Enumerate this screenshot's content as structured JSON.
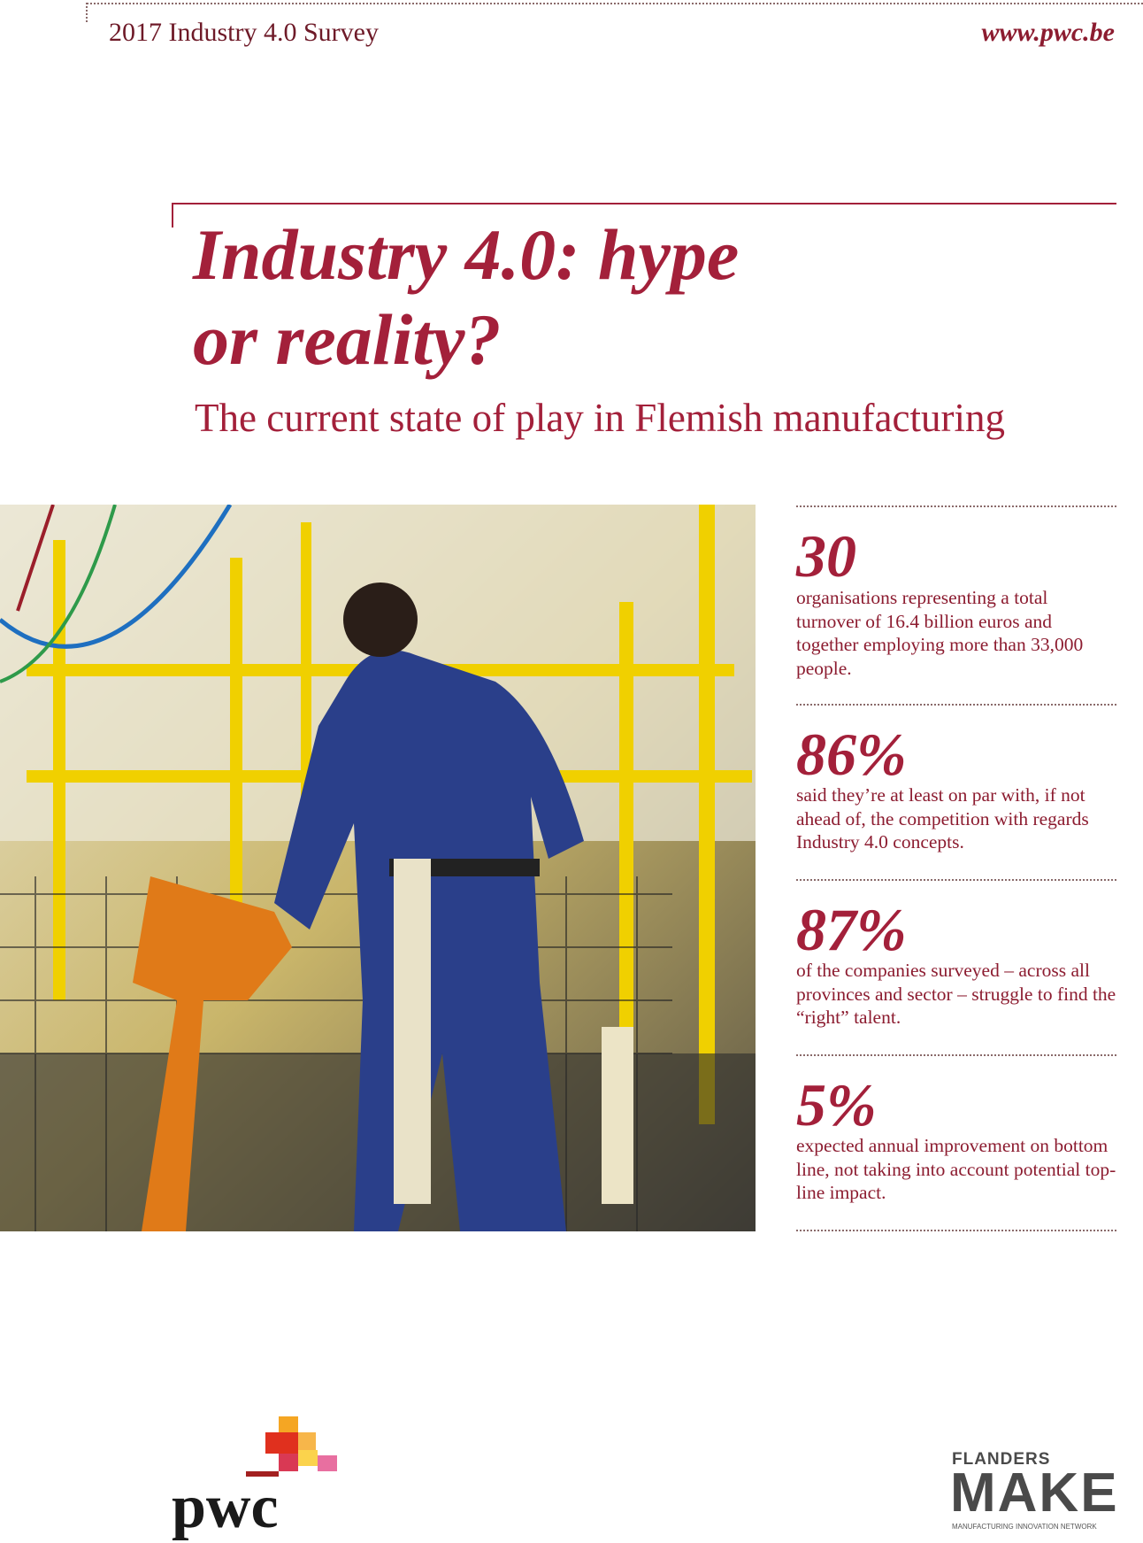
{
  "header": {
    "survey": "2017 Industry 4.0 Survey",
    "url": "www.pwc.be"
  },
  "title": {
    "line1": "Industry 4.0: hype",
    "line2": "or reality?",
    "subtitle": "The current state of play in Flemish manufacturing"
  },
  "stats": [
    {
      "figure": "30",
      "text": "organisations representing a total turnover of 16.4 billion euros and together employing more than 33,000 people."
    },
    {
      "figure": "86%",
      "text": "said they’re at least on par with, if not ahead of, the competition with regards Industry 4.0 concepts."
    },
    {
      "figure": "87%",
      "text": "of the companies surveyed – across all provinces and sector – struggle to find the “right” talent."
    },
    {
      "figure": "5%",
      "text": "expected annual improvement on bottom line, not taking into account potential top-line impact."
    }
  ],
  "logos": {
    "pwc": "pwc",
    "flanders": "FLANDERS",
    "make": "MAKE",
    "tagline": "MANUFACTURING INNOVATION NETWORK"
  }
}
